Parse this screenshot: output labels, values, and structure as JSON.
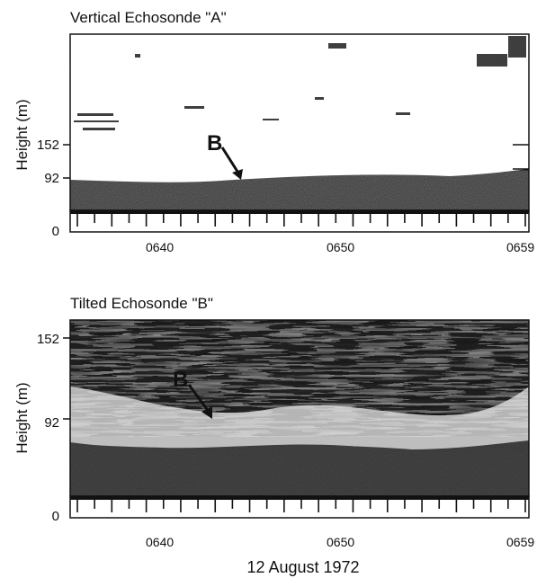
{
  "panel_a": {
    "title": "Vertical Echosonde \"A\"",
    "ylabel": "Height (m)",
    "yticks": [
      "152",
      "92",
      "0"
    ],
    "xticks": [
      "0640",
      "0650",
      "0659"
    ],
    "marker": "B"
  },
  "panel_b": {
    "title": "Tilted Echosonde \"B\"",
    "ylabel": "Height (m)",
    "yticks": [
      "152",
      "92",
      "0"
    ],
    "xticks": [
      "0640",
      "0650",
      "0659"
    ],
    "marker": "B"
  },
  "date_label": "12 August 1972",
  "colors": {
    "ink": "#111111",
    "echo_dark": "#2a2a2a",
    "paper": "#ffffff"
  }
}
